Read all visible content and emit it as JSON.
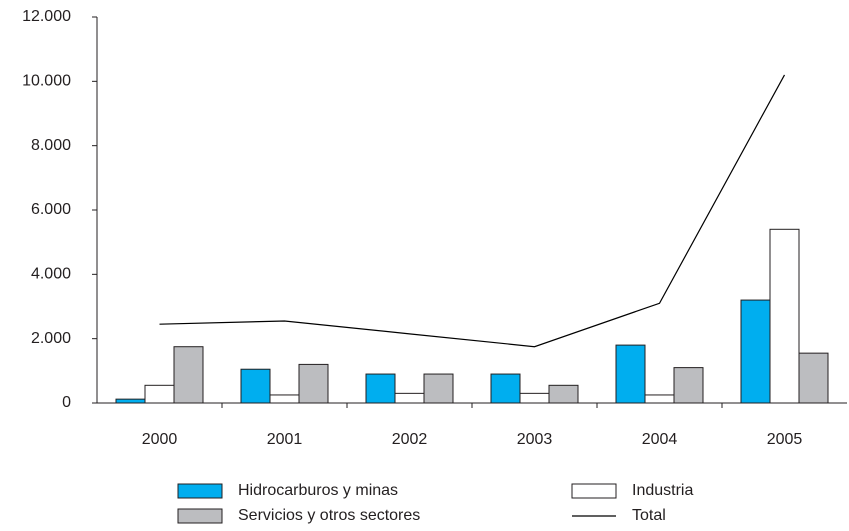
{
  "chart_data": {
    "type": "bar",
    "categories": [
      "2000",
      "2001",
      "2002",
      "2003",
      "2004",
      "2005"
    ],
    "series": [
      {
        "name": "Hidrocarburos y minas",
        "color": "#00aeef",
        "values": [
          120,
          1050,
          900,
          900,
          1800,
          3200
        ]
      },
      {
        "name": "Industria",
        "color": "#ffffff",
        "values": [
          550,
          250,
          300,
          300,
          250,
          5400
        ]
      },
      {
        "name": "Servicios y otros sectores",
        "color": "#bcbdc0",
        "values": [
          1750,
          1200,
          900,
          550,
          1100,
          1550
        ]
      },
      {
        "name": "Total",
        "type": "line",
        "color": "#000000",
        "values": [
          2450,
          2550,
          2150,
          1750,
          3100,
          10200
        ]
      }
    ],
    "ylim": [
      0,
      12000
    ],
    "yticks": [
      0,
      {
        "value": 2000,
        "label": "2.000"
      },
      {
        "value": 4000,
        "label": "4.000"
      },
      {
        "value": 6000,
        "label": "6.000"
      },
      {
        "value": 8000,
        "label": "8.000"
      },
      {
        "value": 10000,
        "label": "10.000"
      },
      {
        "value": 12000,
        "label": "12.000"
      }
    ],
    "grid": false
  }
}
